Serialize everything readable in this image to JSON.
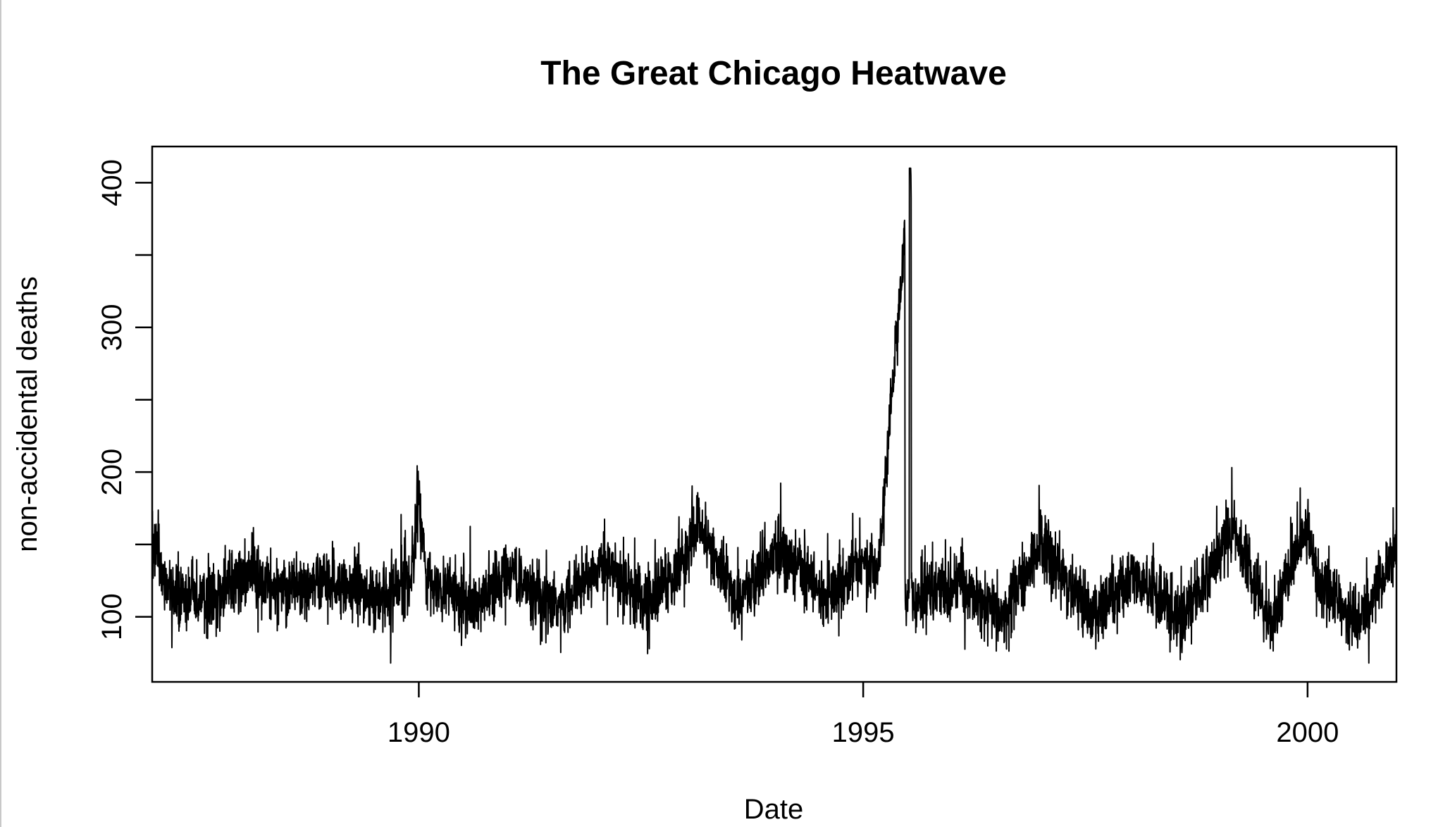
{
  "chart_data": {
    "type": "line",
    "title": "The Great Chicago Heatwave",
    "xlabel": "Date",
    "ylabel": "non-accidental deaths",
    "xlim": [
      1987.0,
      2001.0
    ],
    "ylim": [
      55,
      425
    ],
    "x_ticks": [
      1990,
      1995,
      2000
    ],
    "x_tick_labels": [
      "1990",
      "1995",
      "2000"
    ],
    "y_ticks": [
      100,
      150,
      200,
      250,
      300,
      350,
      400
    ],
    "y_tick_labels": [
      "100",
      "",
      "200",
      "",
      "300",
      "",
      "400"
    ],
    "grid": false,
    "legend": "none",
    "line_color": "#000000",
    "series": [
      {
        "x_start": "1987-01-01",
        "x_end": "2000-12-31",
        "profile_points": [
          [
            "1987-01-01",
            150
          ],
          [
            "1987-03-01",
            120
          ],
          [
            "1987-07-01",
            112
          ],
          [
            "1987-12-15",
            122
          ],
          [
            "1988-02-01",
            128
          ],
          [
            "1988-07-01",
            118
          ],
          [
            "1988-12-15",
            125
          ],
          [
            "1989-03-01",
            122
          ],
          [
            "1989-08-01",
            112
          ],
          [
            "1989-12-01",
            130
          ],
          [
            "1989-12-31",
            185
          ],
          [
            "1990-02-01",
            125
          ],
          [
            "1990-08-01",
            108
          ],
          [
            "1991-01-15",
            132
          ],
          [
            "1991-08-01",
            105
          ],
          [
            "1992-01-20",
            138
          ],
          [
            "1992-08-01",
            108
          ],
          [
            "1993-01-20",
            145
          ],
          [
            "1993-03-01",
            165
          ],
          [
            "1993-08-01",
            110
          ],
          [
            "1994-01-15",
            148
          ],
          [
            "1994-08-01",
            112
          ],
          [
            "1995-01-01",
            140
          ],
          [
            "1995-03-01",
            128
          ],
          [
            "1995-07-13",
            410
          ],
          [
            "1995-08-01",
            112
          ],
          [
            "1996-01-20",
            125
          ],
          [
            "1996-08-01",
            100
          ],
          [
            "1997-01-01",
            150
          ],
          [
            "1997-08-01",
            100
          ],
          [
            "1998-01-15",
            130
          ],
          [
            "1998-08-01",
            98
          ],
          [
            "1999-01-20",
            150
          ],
          [
            "1999-03-01",
            160
          ],
          [
            "1999-08-01",
            95
          ],
          [
            "2000-01-01",
            163
          ],
          [
            "2000-02-01",
            128
          ],
          [
            "2000-08-01",
            95
          ],
          [
            "2000-12-31",
            145
          ]
        ],
        "min": 68,
        "max": 410,
        "peak": [
          "1995-07-13",
          410
        ]
      }
    ]
  }
}
